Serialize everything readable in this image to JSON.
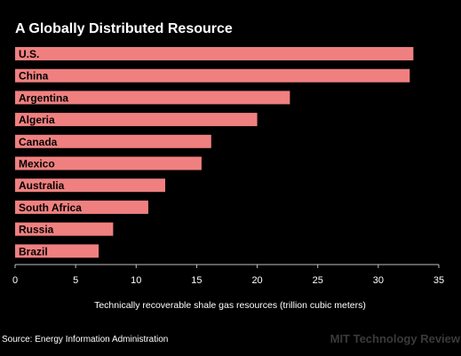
{
  "colors": {
    "background": "#000000",
    "bar": "#f08080",
    "text": "#ffffff",
    "bar_label": "#000000",
    "axis": "#bfbfbf",
    "brand": "#3a3a3a"
  },
  "source": "Source: Energy Information Administration",
  "brand": "MIT Technology Review",
  "chart_data": {
    "type": "bar",
    "orientation": "horizontal",
    "title": "A Globally Distributed Resource",
    "xlabel": "Technically recoverable shale gas resources (trillion cubic meters)",
    "ylabel": "",
    "categories": [
      "U.S.",
      "China",
      "Argentina",
      "Algeria",
      "Canada",
      "Mexico",
      "Australia",
      "South Africa",
      "Russia",
      "Brazil"
    ],
    "values": [
      32.9,
      32.6,
      22.7,
      20.0,
      16.2,
      15.4,
      12.4,
      11.0,
      8.1,
      6.9
    ],
    "xlim": [
      0,
      35
    ],
    "xticks": [
      "0",
      "5",
      "10",
      "15",
      "20",
      "25",
      "30",
      "35"
    ],
    "grid": false,
    "legend": "none"
  }
}
